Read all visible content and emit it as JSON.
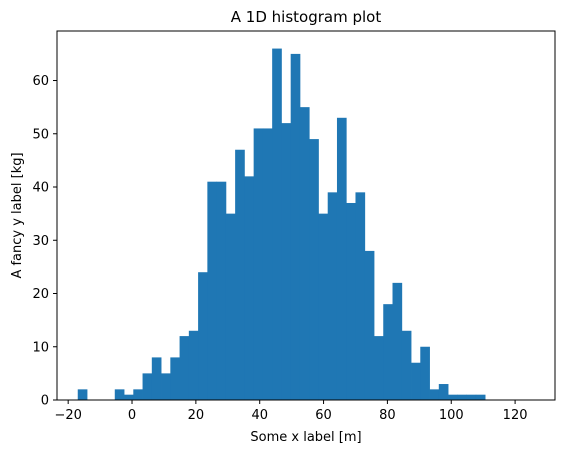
{
  "chart_data": {
    "type": "bar",
    "subtype": "histogram",
    "title": "A 1D histogram plot",
    "xlabel": "Some x label [m]",
    "ylabel": "A fancy y label [kg]",
    "xlim": [
      -23.5,
      132.5
    ],
    "ylim": [
      0,
      69.3
    ],
    "xticks": [
      -20,
      0,
      20,
      40,
      60,
      80,
      100,
      120
    ],
    "yticks": [
      0,
      10,
      20,
      30,
      40,
      50,
      60
    ],
    "grid": false,
    "legend": "none",
    "bar_color": "#1f77b4",
    "bin_start": -17,
    "bin_width": 2.9,
    "values": [
      2,
      0,
      0,
      0,
      2,
      1,
      2,
      5,
      8,
      5,
      8,
      12,
      13,
      24,
      41,
      41,
      35,
      47,
      42,
      51,
      51,
      66,
      52,
      65,
      55,
      49,
      35,
      39,
      53,
      37,
      39,
      28,
      12,
      18,
      22,
      13,
      7,
      10,
      2,
      3,
      1,
      1,
      1,
      1,
      0,
      0,
      0,
      0,
      0,
      0,
      0,
      0,
      0,
      0,
      0,
      1
    ]
  }
}
